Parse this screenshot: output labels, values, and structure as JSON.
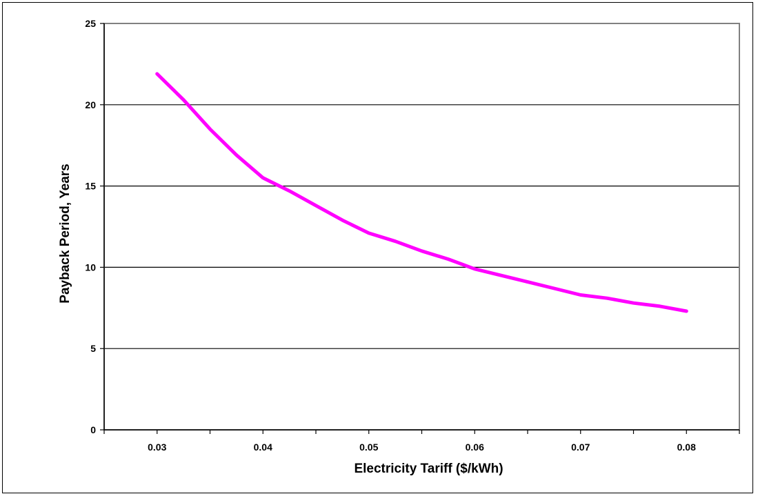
{
  "chart_data": {
    "type": "line",
    "title": "",
    "xlabel": "Electricity Tariff ($/kWh)",
    "ylabel": "Payback Period, Years",
    "x_ticks": [
      "0.03",
      "0.04",
      "0.05",
      "0.06",
      "0.07",
      "0.08"
    ],
    "y_ticks": [
      "0",
      "5",
      "10",
      "15",
      "20",
      "25"
    ],
    "xlim": [
      0.025,
      0.085
    ],
    "ylim": [
      0,
      25
    ],
    "grid": "horizontal",
    "legend": "none",
    "series": [
      {
        "color": "#ff00ff",
        "x": [
          0.03,
          0.0325,
          0.035,
          0.0375,
          0.04,
          0.0425,
          0.045,
          0.0475,
          0.05,
          0.0525,
          0.055,
          0.0575,
          0.06,
          0.0625,
          0.065,
          0.0675,
          0.07,
          0.0725,
          0.075,
          0.0775,
          0.08
        ],
        "values": [
          21.9,
          20.3,
          18.5,
          16.9,
          15.5,
          14.7,
          13.8,
          12.9,
          12.1,
          11.6,
          11.0,
          10.5,
          9.9,
          9.5,
          9.1,
          8.7,
          8.3,
          8.1,
          7.8,
          7.6,
          7.3
        ]
      }
    ]
  }
}
